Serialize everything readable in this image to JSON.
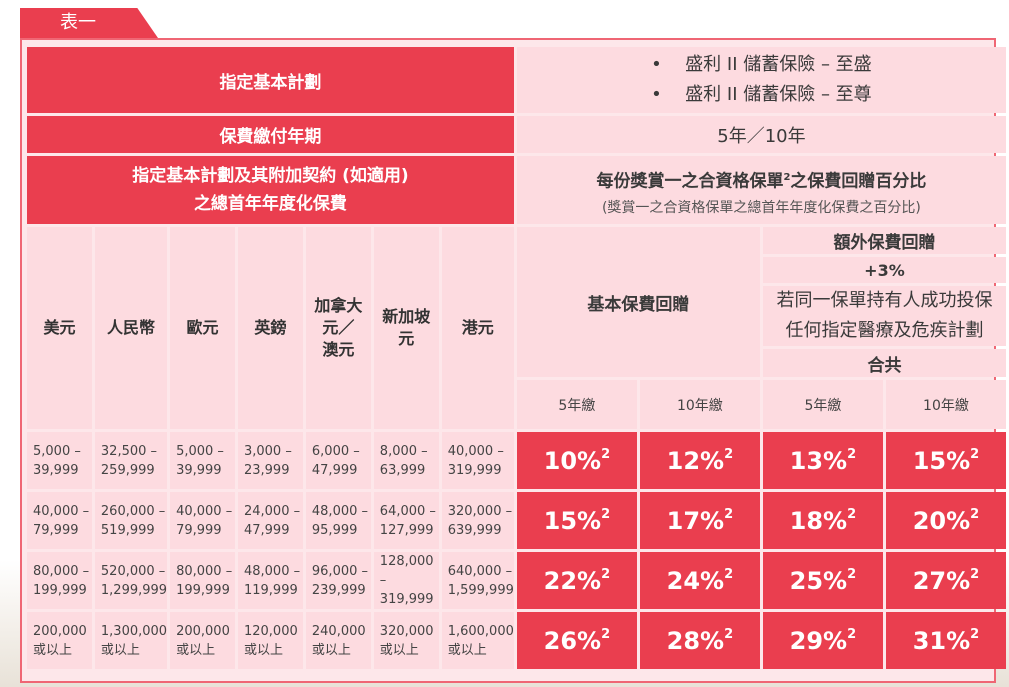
{
  "tab_label": "表一",
  "plan": {
    "header": "指定基本計劃",
    "items": [
      "盛利 II 儲蓄保險 – 至盛",
      "盛利 II 儲蓄保險 – 至尊"
    ],
    "bullet": "•"
  },
  "payment_term": {
    "header": "保費繳付年期",
    "value": "5年／10年"
  },
  "premium_header": {
    "line1": "指定基本計劃及其附加契約 (如適用)",
    "line2": "之總首年年度化保費"
  },
  "rebate_header": {
    "title_pre": "每份獎賞一之合資格保單",
    "title_sup": "2",
    "title_post": "之保費回贈百分比",
    "subtitle": "(獎賞一之合資格保單之總首年年度化保費之百分比)"
  },
  "basic_rebate": "基本保費回贈",
  "extra_rebate": {
    "title": "額外保費回贈",
    "plus": "+3%",
    "condition_line1": "若同一保單持有人成功投保",
    "condition_line2": "任何指定醫療及危疾計劃",
    "total": "合共"
  },
  "year_labels": [
    "5年繳",
    "10年繳",
    "5年繳",
    "10年繳"
  ],
  "currencies": [
    "美元",
    "人民幣",
    "歐元",
    "英鎊",
    "加拿大元／澳元",
    "新加坡元",
    "港元"
  ],
  "currency_display": [
    [
      "美元"
    ],
    [
      "人民幣"
    ],
    [
      "歐元"
    ],
    [
      "英鎊"
    ],
    [
      "加拿大",
      "元／",
      "澳元"
    ],
    [
      "新加坡",
      "元"
    ],
    [
      "港元"
    ]
  ],
  "rows": [
    {
      "ranges": [
        [
          "5,000 –",
          "39,999"
        ],
        [
          "32,500 –",
          "259,999"
        ],
        [
          "5,000 –",
          "39,999"
        ],
        [
          "3,000 –",
          "23,999"
        ],
        [
          "6,000 –",
          "47,999"
        ],
        [
          "8,000 –",
          "63,999"
        ],
        [
          "40,000 –",
          "319,999"
        ]
      ],
      "pcts": [
        "10%",
        "12%",
        "13%",
        "15%"
      ]
    },
    {
      "ranges": [
        [
          "40,000 –",
          "79,999"
        ],
        [
          "260,000 –",
          "519,999"
        ],
        [
          "40,000 –",
          "79,999"
        ],
        [
          "24,000 –",
          "47,999"
        ],
        [
          "48,000 –",
          "95,999"
        ],
        [
          "64,000 –",
          "127,999"
        ],
        [
          "320,000 –",
          "639,999"
        ]
      ],
      "pcts": [
        "15%",
        "17%",
        "18%",
        "20%"
      ]
    },
    {
      "ranges": [
        [
          "80,000 –",
          "199,999"
        ],
        [
          "520,000 –",
          "1,299,999"
        ],
        [
          "80,000 –",
          "199,999"
        ],
        [
          "48,000 –",
          "119,999"
        ],
        [
          "96,000 –",
          "239,999"
        ],
        [
          "128,000 –",
          "319,999"
        ],
        [
          "640,000 –",
          "1,599,999"
        ]
      ],
      "pcts": [
        "22%",
        "24%",
        "25%",
        "27%"
      ]
    },
    {
      "ranges": [
        [
          "200,000",
          "或以上"
        ],
        [
          "1,300,000",
          "或以上"
        ],
        [
          "200,000",
          "或以上"
        ],
        [
          "120,000",
          "或以上"
        ],
        [
          "240,000",
          "或以上"
        ],
        [
          "320,000",
          "或以上"
        ],
        [
          "1,600,000",
          "或以上"
        ]
      ],
      "pcts": [
        "26%",
        "28%",
        "29%",
        "31%"
      ]
    }
  ],
  "pct_sup": "2",
  "colors": {
    "accent_red": "#ea3e4f",
    "pink": "#fddbe0",
    "frame": "#ef6674"
  }
}
